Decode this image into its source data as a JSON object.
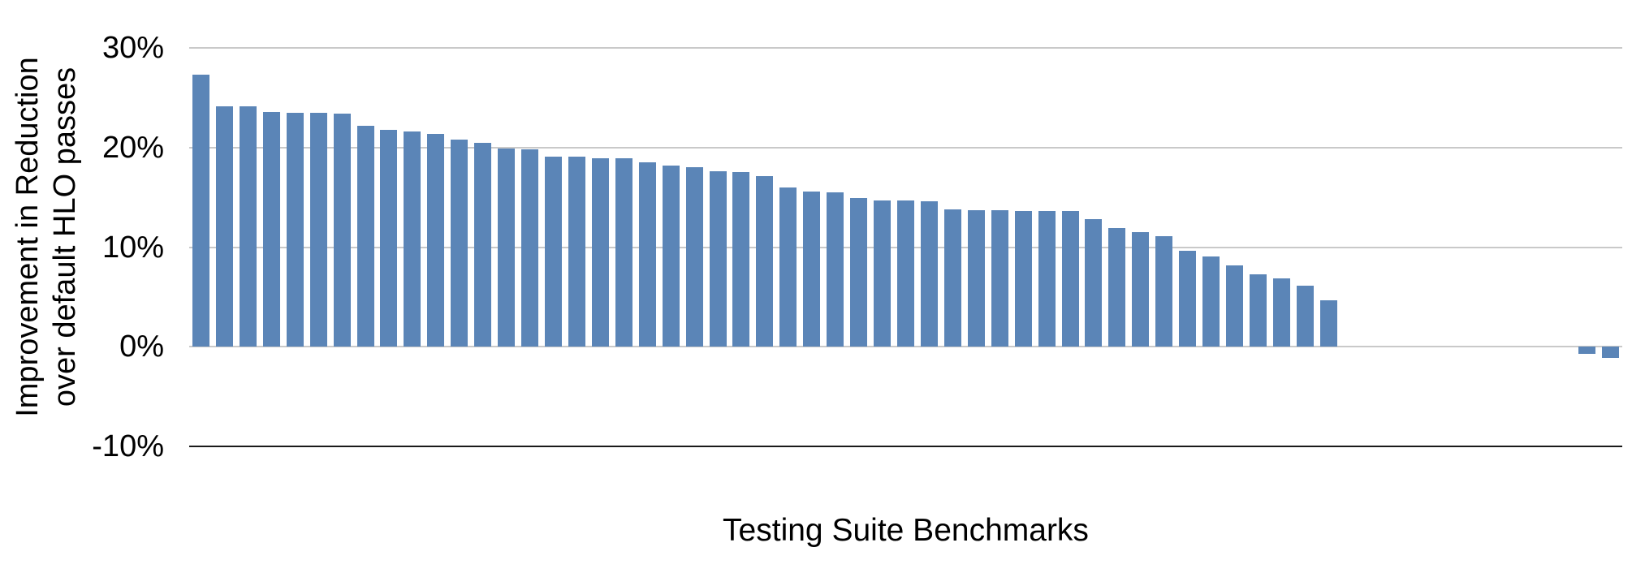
{
  "chart_data": {
    "type": "bar",
    "title": "",
    "xlabel": "Testing Suite Benchmarks",
    "ylabel": "Improvement in Reduction over default HLO passes",
    "ylabel_lines": [
      "Improvement in Reduction",
      "over default HLO passes"
    ],
    "yticks": [
      {
        "label": "30%",
        "value": 30
      },
      {
        "label": "20%",
        "value": 20
      },
      {
        "label": "10%",
        "value": 10
      },
      {
        "label": "0%",
        "value": 0
      },
      {
        "label": "-10%",
        "value": -10
      }
    ],
    "ylim": [
      -10,
      30
    ],
    "grid": true,
    "legend": false,
    "x_category_labels_shown": false,
    "bar_color": "#5b85b7",
    "gridline_color": "#c9c9c9",
    "baseline_color": "#1a1a1a",
    "values": [
      27.3,
      24.1,
      24.1,
      23.6,
      23.5,
      23.5,
      23.4,
      22.2,
      21.8,
      21.6,
      21.4,
      20.8,
      20.5,
      19.9,
      19.8,
      19.1,
      19.1,
      18.9,
      18.9,
      18.5,
      18.2,
      18.0,
      17.6,
      17.5,
      17.1,
      16.0,
      15.6,
      15.5,
      14.9,
      14.7,
      14.7,
      14.6,
      13.8,
      13.7,
      13.7,
      13.6,
      13.6,
      13.6,
      12.8,
      11.9,
      11.5,
      11.1,
      9.6,
      9.1,
      8.2,
      7.3,
      6.9,
      6.1,
      4.7,
      0,
      0,
      0,
      0,
      0,
      0,
      0,
      0,
      0,
      0,
      -0.7,
      -1.1
    ]
  }
}
